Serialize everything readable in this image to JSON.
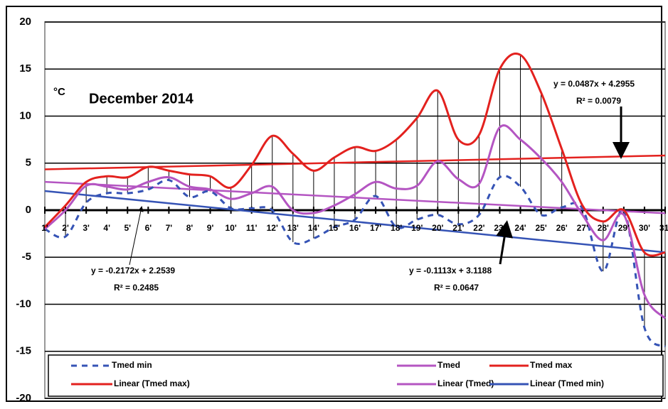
{
  "chart_data": {
    "type": "line",
    "title": "December 2014",
    "y_label": "°C",
    "x": [
      1,
      2,
      3,
      4,
      5,
      6,
      7,
      8,
      9,
      10,
      11,
      12,
      13,
      14,
      15,
      16,
      17,
      18,
      19,
      20,
      21,
      22,
      23,
      24,
      25,
      26,
      27,
      28,
      29,
      30,
      31
    ],
    "x_labels": [
      "1'",
      "2'",
      "3'",
      "4'",
      "5'",
      "6'",
      "7'",
      "8'",
      "9'",
      "10'",
      "11'",
      "12'",
      "13'",
      "14'",
      "15'",
      "16'",
      "17'",
      "18'",
      "19'",
      "20'",
      "21'",
      "22'",
      "23'",
      "24'",
      "25'",
      "26'",
      "27'",
      "28'",
      "29'",
      "30'",
      "31'"
    ],
    "xlim": [
      1,
      31
    ],
    "ylim": [
      -20,
      20
    ],
    "yticks": [
      -20,
      -15,
      -10,
      -5,
      0,
      5,
      10,
      15,
      20
    ],
    "grid": true,
    "high_low_lines": true,
    "series": [
      {
        "name": "Tmed min",
        "color": "#3553b5",
        "line_style": "dashed",
        "values": [
          -2.0,
          -2.8,
          0.8,
          1.8,
          1.8,
          2.2,
          3.2,
          1.4,
          2.0,
          0.2,
          0.2,
          0.0,
          -3.4,
          -3.0,
          -1.8,
          -1.0,
          1.5,
          -1.8,
          -1.0,
          -0.5,
          -1.5,
          -0.5,
          3.5,
          2.5,
          -0.5,
          0.3,
          0.2,
          -6.5,
          0.0,
          -12.5,
          -14.5
        ]
      },
      {
        "name": "Tmed",
        "color": "#b455c2",
        "line_style": "solid",
        "values": [
          -2.0,
          0.0,
          2.6,
          2.5,
          2.2,
          3.0,
          3.5,
          2.5,
          2.2,
          1.2,
          1.8,
          2.5,
          0.0,
          -0.3,
          0.5,
          1.7,
          3.0,
          2.3,
          2.6,
          5.2,
          3.3,
          2.8,
          8.8,
          7.5,
          5.5,
          3.0,
          -0.5,
          -3.2,
          -0.5,
          -9.0,
          -11.5
        ]
      },
      {
        "name": "Tmed max",
        "color": "#e3211e",
        "line_style": "solid",
        "values": [
          -1.8,
          0.5,
          3.0,
          3.6,
          3.5,
          4.6,
          4.2,
          3.8,
          3.6,
          2.4,
          4.8,
          7.9,
          6.0,
          4.2,
          5.6,
          6.7,
          6.3,
          7.5,
          9.8,
          12.7,
          7.5,
          8.0,
          15.0,
          16.5,
          12.5,
          6.5,
          0.5,
          -1.2,
          0.0,
          -4.5,
          -4.5
        ]
      },
      {
        "name": "Linear (Tmed max)",
        "color": "#e3211e",
        "line_style": "trend",
        "x": [
          1,
          31
        ],
        "values": [
          4.34,
          5.81
        ]
      },
      {
        "name": "Linear (Tmed)",
        "color": "#b455c2",
        "line_style": "trend",
        "x": [
          1,
          31
        ],
        "values": [
          3.01,
          -0.33
        ]
      },
      {
        "name": "Linear (Tmed min)",
        "color": "#3553b5",
        "line_style": "trend",
        "x": [
          1,
          31
        ],
        "values": [
          2.04,
          -4.48
        ]
      }
    ],
    "annotations": [
      "y = 0.0487x + 4.2955",
      "R² = 0.0079",
      "y = -0.2172x + 2.2539",
      "R² = 0.2485",
      "y = -0.1113x + 3.1188",
      "R² = 0.0647"
    ]
  }
}
